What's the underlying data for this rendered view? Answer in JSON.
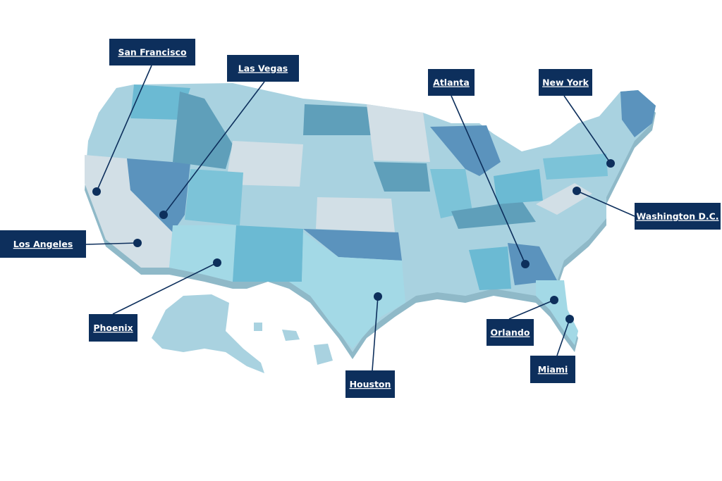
{
  "cities": [
    {
      "label": "San Francisco"
    },
    {
      "label": "Las Vegas"
    },
    {
      "label": "Atlanta"
    },
    {
      "label": "New York"
    },
    {
      "label": "Washington D.C."
    },
    {
      "label": "Los Angeles"
    },
    {
      "label": "Phoenix"
    },
    {
      "label": "Orlando"
    },
    {
      "label": "Houston"
    },
    {
      "label": "Miami"
    }
  ]
}
